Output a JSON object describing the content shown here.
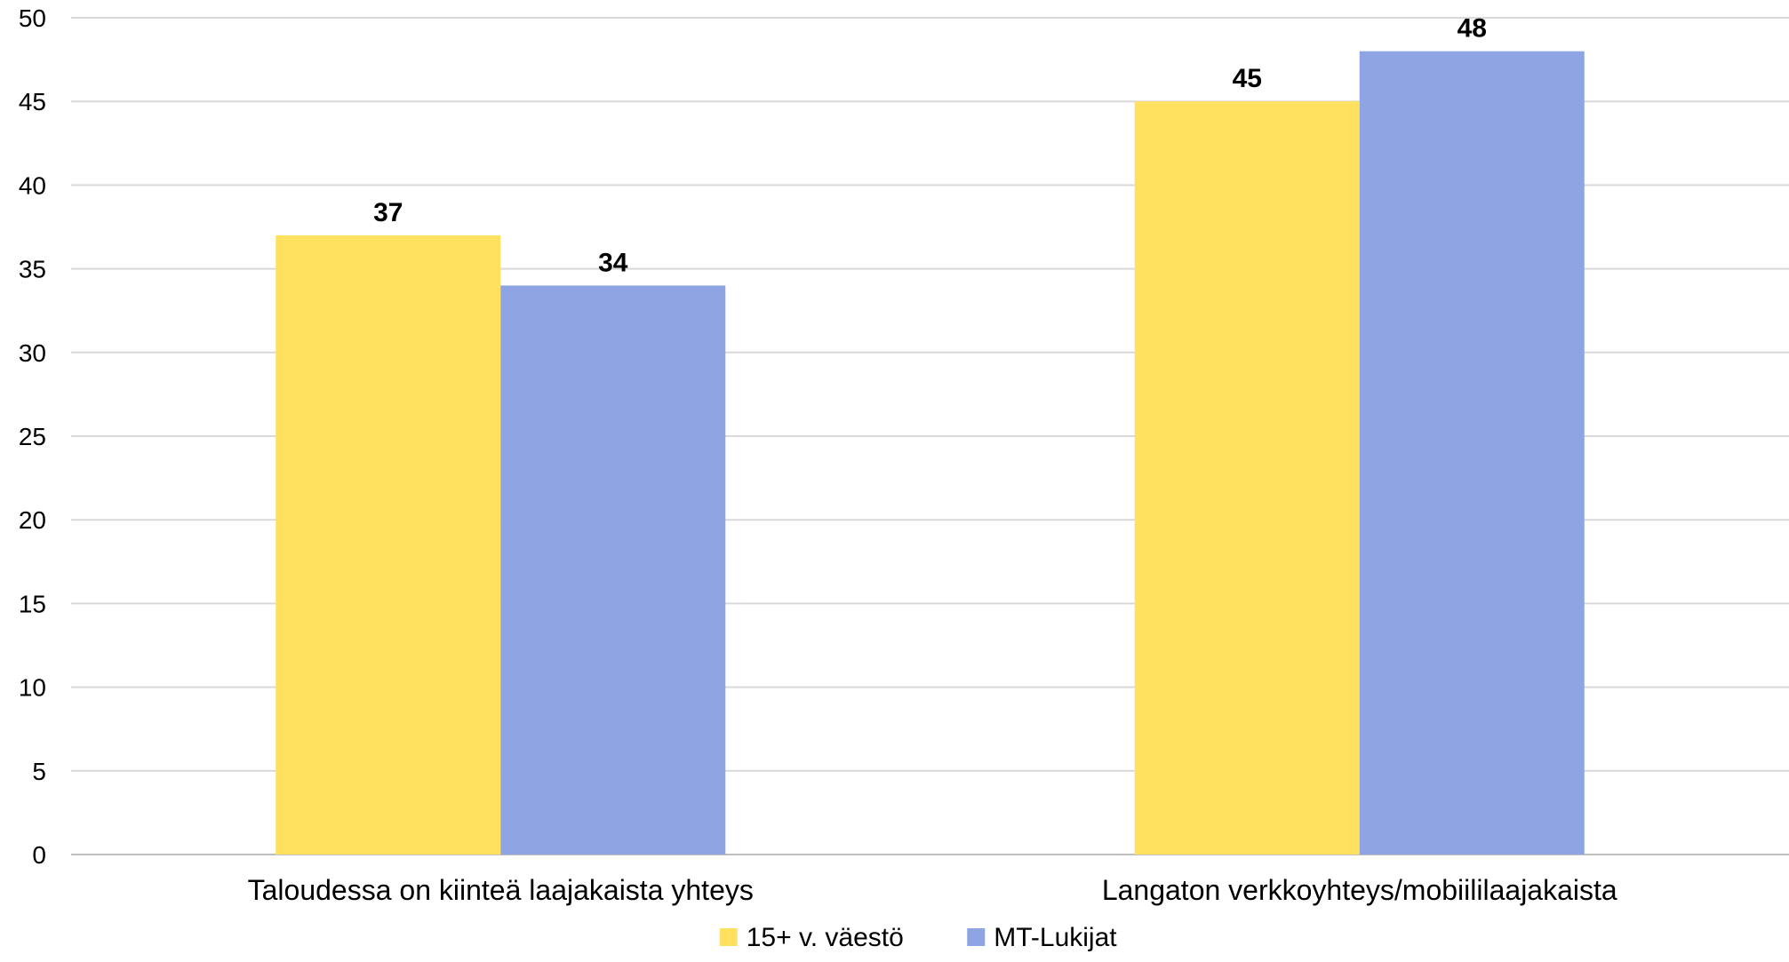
{
  "chart_data": {
    "type": "bar",
    "categories": [
      "Taloudessa on kiinteä laajakaista yhteys",
      "Langaton verkkoyhteys/mobiililaajakaista"
    ],
    "series": [
      {
        "name": "15+ v. väestö",
        "values": [
          37,
          45
        ],
        "color": "#FFE15F"
      },
      {
        "name": "MT-Lukijat",
        "values": [
          34,
          48
        ],
        "color": "#8FA5E3"
      }
    ],
    "ylim": [
      0,
      50
    ],
    "ytick_step": 5,
    "grid": true,
    "legend_position": "bottom-center",
    "show_data_labels": true
  }
}
